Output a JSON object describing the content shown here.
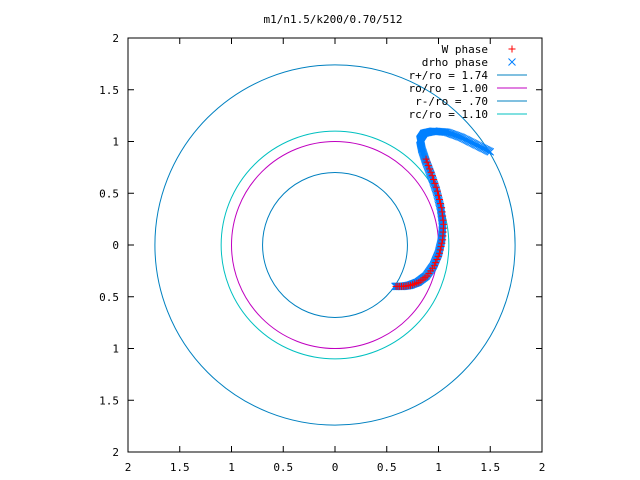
{
  "chart_data": {
    "type": "scatter",
    "title": "m1/n1.5/k200/0.70/512",
    "xlabel": "",
    "ylabel": "",
    "xlim": [
      -2,
      2
    ],
    "ylim": [
      -2,
      2
    ],
    "x_tick_labels": [
      "2",
      "1.5",
      "1",
      "0.5",
      "0",
      "0.5",
      "1",
      "1.5",
      "2"
    ],
    "x_tick_values": [
      -2,
      -1.5,
      -1,
      -0.5,
      0,
      0.5,
      1,
      1.5,
      2
    ],
    "y_tick_labels": [
      "2",
      "1.5",
      "1",
      "0.5",
      "0",
      "0.5",
      "1",
      "1.5",
      "2"
    ],
    "y_tick_values": [
      2,
      1.5,
      1,
      0.5,
      0,
      -0.5,
      -1,
      -1.5,
      -2
    ],
    "grid": false,
    "legend_position": "top-right",
    "series": [
      {
        "name": "W phase",
        "kind": "points",
        "marker": "plus",
        "color": "#ff0000"
      },
      {
        "name": "drho phase",
        "kind": "points",
        "marker": "x",
        "color": "#0080ff"
      },
      {
        "name": "r+/ro = 1.74",
        "kind": "circle",
        "radius": 1.74,
        "color": "#0080c0"
      },
      {
        "name": "ro/ro = 1.00",
        "kind": "circle",
        "radius": 1.0,
        "color": "#c000c0"
      },
      {
        "name": "r-/ro = .70",
        "kind": "circle",
        "radius": 0.7,
        "color": "#0080c0"
      },
      {
        "name": "rc/ro = 1.10",
        "kind": "circle",
        "radius": 1.1,
        "color": "#00c0c0"
      }
    ],
    "phase_curve": [
      [
        0.58,
        -0.4
      ],
      [
        0.65,
        -0.4
      ],
      [
        0.72,
        -0.39
      ],
      [
        0.8,
        -0.36
      ],
      [
        0.88,
        -0.3
      ],
      [
        0.95,
        -0.2
      ],
      [
        1.0,
        -0.08
      ],
      [
        1.03,
        0.05
      ],
      [
        1.04,
        0.2
      ],
      [
        1.02,
        0.36
      ],
      [
        0.98,
        0.52
      ],
      [
        0.93,
        0.67
      ],
      [
        0.88,
        0.8
      ],
      [
        0.84,
        0.92
      ],
      [
        0.82,
        1.02
      ],
      [
        0.86,
        1.08
      ],
      [
        0.95,
        1.1
      ],
      [
        1.08,
        1.09
      ],
      [
        1.22,
        1.04
      ],
      [
        1.36,
        0.97
      ],
      [
        1.5,
        0.9
      ]
    ]
  }
}
